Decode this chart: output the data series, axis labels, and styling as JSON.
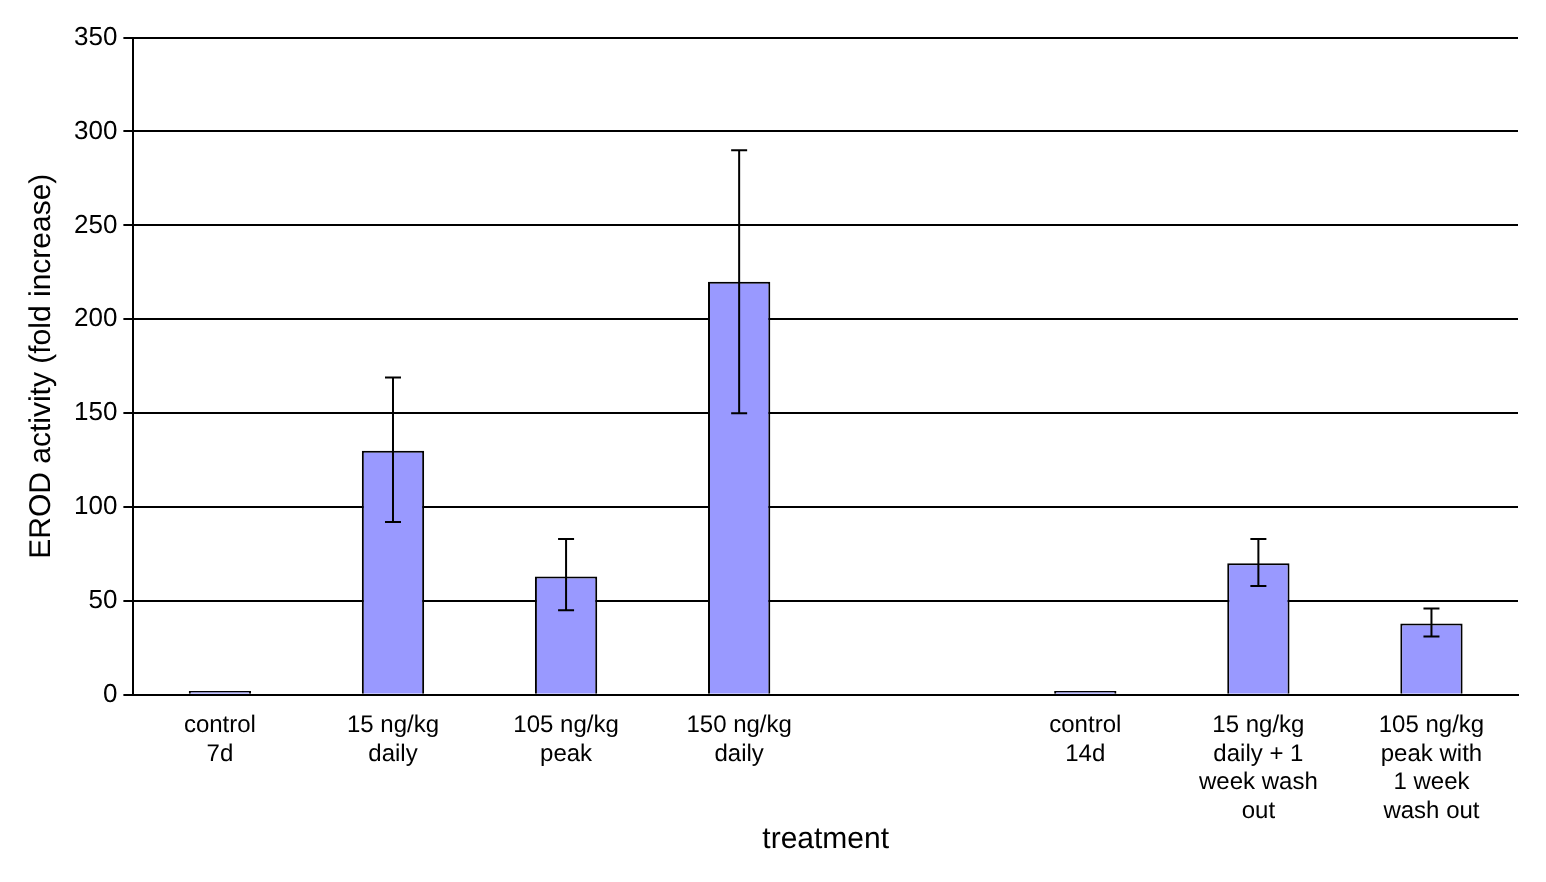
{
  "chart_data": {
    "type": "bar",
    "xlabel": "treatment",
    "ylabel": "EROD activity (fold increase)",
    "categories": [
      "control 7d",
      "15 ng/kg daily",
      "105 ng/kg peak",
      "150 ng/kg daily",
      null,
      "control 14d",
      "15 ng/kg daily + 1 week wash out",
      "105 ng/kg peak with 1 week wash out"
    ],
    "values": [
      2,
      130,
      63,
      220,
      null,
      2,
      70,
      38
    ],
    "errors": [
      null,
      [
        92,
        169
      ],
      [
        45,
        83
      ],
      [
        150,
        290
      ],
      null,
      null,
      [
        58,
        83
      ],
      [
        31,
        46
      ]
    ],
    "color": "#9999ff",
    "ylim": [
      0,
      350
    ],
    "yticks": [
      0,
      50,
      100,
      150,
      200,
      250,
      300,
      350
    ],
    "grid": "y",
    "legend": false
  }
}
